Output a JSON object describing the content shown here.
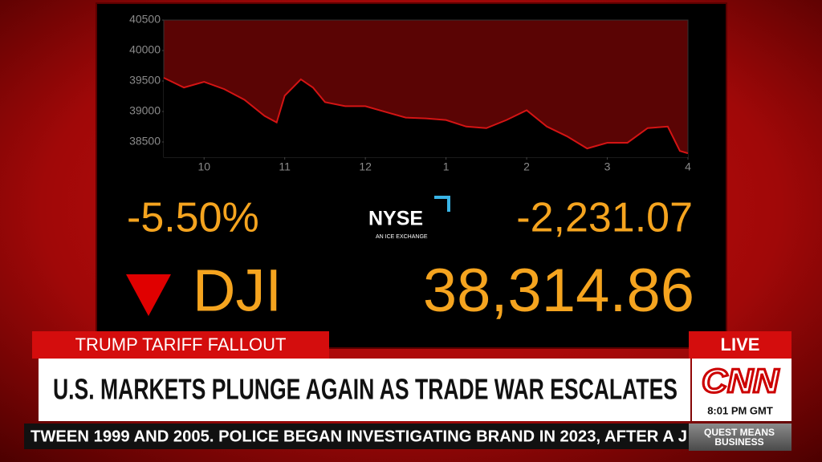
{
  "chart_data": {
    "type": "line",
    "color": "#d41414",
    "x": [
      9.5,
      9.75,
      10,
      10.25,
      10.5,
      10.75,
      10.9,
      11,
      11.2,
      11.35,
      11.5,
      11.75,
      12,
      12.25,
      12.5,
      12.75,
      13,
      13.25,
      13.5,
      13.75,
      14,
      14.25,
      14.5,
      14.75,
      15,
      15.25,
      15.5,
      15.75,
      15.9,
      16
    ],
    "values": [
      39553,
      39393,
      39487,
      39367,
      39193,
      38927,
      38820,
      39260,
      39527,
      39393,
      39153,
      39087,
      39087,
      38993,
      38900,
      38887,
      38860,
      38753,
      38727,
      38860,
      39020,
      38753,
      38593,
      38393,
      38487,
      38487,
      38727,
      38753,
      38353,
      38314
    ],
    "xlim": [
      9.5,
      16
    ],
    "xticks": [
      10,
      11,
      12,
      {
        "value": 13,
        "label": "1"
      },
      {
        "value": 14,
        "label": "2"
      },
      {
        "value": 15,
        "label": "3"
      },
      {
        "value": 16,
        "label": "4"
      }
    ],
    "ylim": [
      38250,
      40500
    ],
    "yticks": [
      38500,
      39000,
      39500,
      40000,
      40500
    ]
  },
  "quote": {
    "percent_change": "-5.50%",
    "exchange": "NYSE",
    "exchange_tagline": "AN ICE EXCHANGE",
    "point_change": "-2,231.07",
    "symbol": "DJI",
    "price": "38,314.86"
  },
  "lower_third": {
    "tag": "TRUMP TARIFF FALLOUT",
    "headline": "U.S. MARKETS PLUNGE AGAIN AS TRADE WAR ESCALATES",
    "live": "LIVE",
    "network": "CNN",
    "time": "8:01 PM GMT",
    "ticker": "TWEEN 1999 AND 2005. POLICE BEGAN INVESTIGATING BRAND IN 2023, AFTER A J",
    "show": "QUEST MEANS BUSINESS"
  }
}
